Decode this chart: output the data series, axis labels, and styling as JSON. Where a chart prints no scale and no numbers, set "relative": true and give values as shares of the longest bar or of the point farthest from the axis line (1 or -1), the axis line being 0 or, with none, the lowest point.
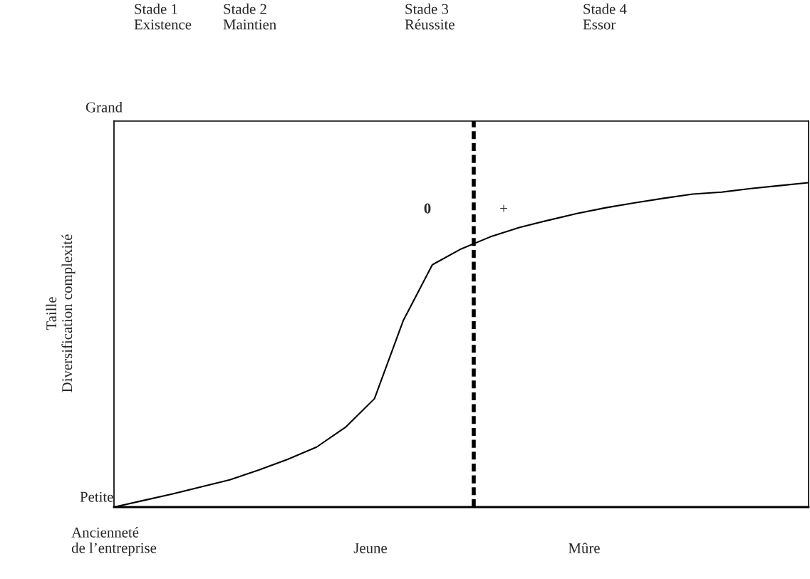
{
  "chart_data": {
    "type": "line",
    "relative": true,
    "xlabel": "Ancienneté\nde l’entreprise",
    "ylabel": "Taille\nDiversification complexité",
    "categories": [
      null,
      null,
      null,
      null,
      null,
      null,
      null,
      null,
      null,
      null,
      null,
      null,
      null,
      null,
      null,
      null,
      null,
      null,
      null,
      null,
      null,
      null,
      null,
      null,
      null
    ],
    "series": [
      {
        "color": "#000000",
        "values": [
          0,
          0.02,
          0.04,
          0.062,
          0.084,
          0.114,
          0.147,
          0.185,
          0.246,
          0.334,
          0.576,
          0.747,
          0.796,
          0.833,
          0.862,
          0.884,
          0.905,
          0.923,
          0.938,
          0.952,
          0.965,
          0.971,
          0.982,
          0.991,
          1
        ]
      }
    ],
    "annotations": [
      "Stade 1\nExistence",
      "Stade 2\nMaintien",
      "Stade 3\nRéussite",
      "Stade 4\nEssor",
      "Grand",
      "Petite",
      "Jeune",
      "Mûre",
      "0",
      "+"
    ],
    "grid": false,
    "legend": false,
    "marker": "none",
    "line_style": "solid"
  }
}
